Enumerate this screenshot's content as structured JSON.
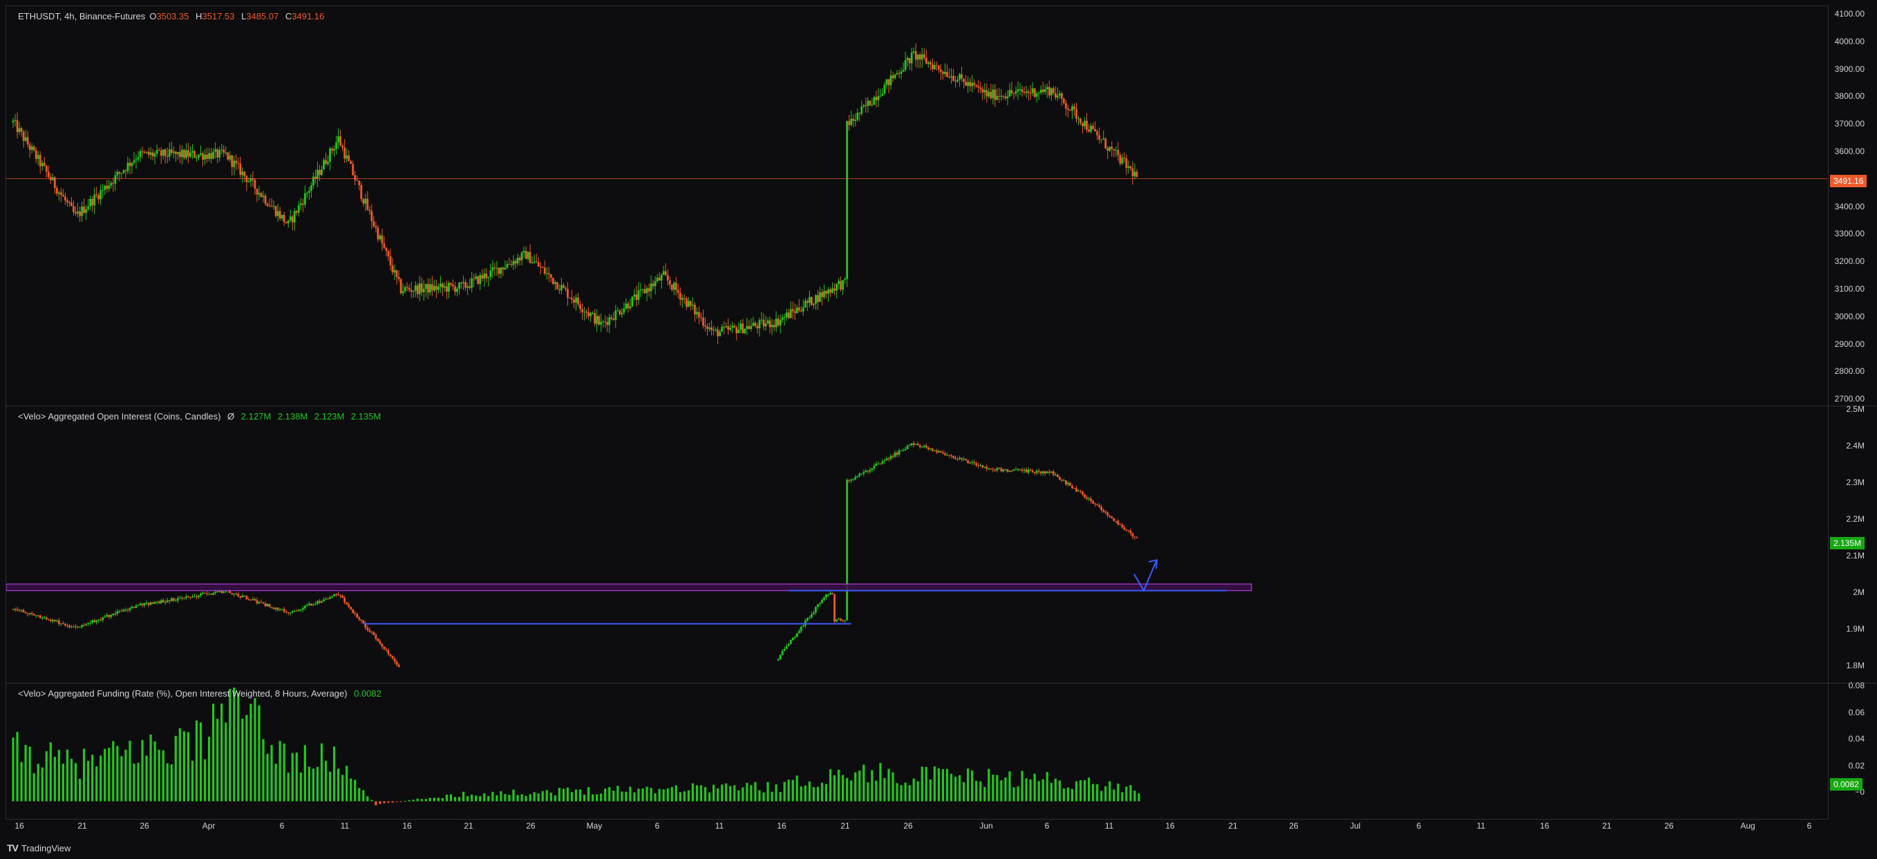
{
  "app": {
    "brand": "TradingView",
    "brand_icon": "tradingview-logo-icon"
  },
  "price_pane": {
    "symbol": "ETHUSDT, 4h, Binance-Futures",
    "o_label": "O",
    "o": "3503.35",
    "h_label": "H",
    "h": "3517.53",
    "l_label": "L",
    "l": "3485.07",
    "c_label": "C",
    "c": "3491.16",
    "last_price": "3491.16",
    "ticks": [
      "4100.00",
      "4000.00",
      "3900.00",
      "3800.00",
      "3700.00",
      "3600.00",
      "3500.00",
      "3400.00",
      "3300.00",
      "3200.00",
      "3100.00",
      "3000.00",
      "2900.00",
      "2800.00",
      "2700.00"
    ]
  },
  "oi_pane": {
    "title": "<Velo> Aggregated Open Interest (Coins, Candles)",
    "ohlc_icon": "Ø",
    "o": "2.127M",
    "h": "2.138M",
    "l": "2.123M",
    "c": "2.135M",
    "last_value": "2.135M",
    "ticks": [
      "2.5M",
      "2.4M",
      "2.3M",
      "2.2M",
      "2.1M",
      "2M",
      "1.9M",
      "1.8M"
    ]
  },
  "funding_pane": {
    "title": "<Velo> Aggregated Funding (Rate (%), Open Interest Weighted, 8 Hours, Average)",
    "value": "0.0082",
    "last_value": "0.0082",
    "ticks": [
      "0.08",
      "0.06",
      "0.04",
      "0.02",
      "−0"
    ]
  },
  "time_axis": [
    "16",
    "21",
    "26",
    "Apr",
    "6",
    "11",
    "16",
    "21",
    "26",
    "May",
    "6",
    "11",
    "16",
    "21",
    "26",
    "Jun",
    "6",
    "11",
    "16",
    "21",
    "26",
    "Jul",
    "6",
    "11",
    "16",
    "21",
    "26",
    "Aug",
    "6"
  ],
  "colors": {
    "up": "#22c81e",
    "down": "#ef5a2b",
    "hline": "#3b5bff",
    "zone_border": "#b03cd8",
    "zone_fill": "#3a1048",
    "last_price_bg": "#ef5a2b",
    "last_value_bg": "#16a811"
  },
  "chart_data": [
    {
      "type": "candlestick",
      "title": "ETHUSDT, 4h, Binance-Futures",
      "x": [
        "2024-03-15",
        "2024-03-20",
        "2024-03-25",
        "2024-04-01",
        "2024-04-06",
        "2024-04-10",
        "2024-04-15",
        "2024-04-20",
        "2024-04-25",
        "2024-05-01",
        "2024-05-06",
        "2024-05-10",
        "2024-05-15",
        "2024-05-20",
        "2024-05-21",
        "2024-05-26",
        "2024-06-01",
        "2024-06-06",
        "2024-06-09",
        "2024-06-13"
      ],
      "close": [
        3700,
        3350,
        3580,
        3580,
        3320,
        3640,
        3080,
        3090,
        3210,
        2950,
        3130,
        2920,
        2960,
        3100,
        3700,
        3950,
        3800,
        3820,
        3680,
        3491.16
      ],
      "ylim": [
        2650,
        4130
      ],
      "annotations": [
        {
          "type": "hline",
          "y": 3491.16,
          "label": "3491.16"
        }
      ]
    },
    {
      "type": "candlestick",
      "title": "<Velo> Aggregated Open Interest (Coins, Candles)",
      "x": [
        "2024-03-15",
        "2024-03-20",
        "2024-03-25",
        "2024-04-01",
        "2024-04-06",
        "2024-04-10",
        "2024-04-15",
        "2024-05-15",
        "2024-05-19",
        "2024-05-20",
        "2024-05-21",
        "2024-05-26",
        "2024-06-01",
        "2024-06-06",
        "2024-06-09",
        "2024-06-13"
      ],
      "close": [
        1950000.0,
        1900000.0,
        1960000.0,
        2000000.0,
        1940000.0,
        1990000.0,
        1790000.0,
        1810000.0,
        1990000.0,
        1920000.0,
        2300000.0,
        2400000.0,
        2330000.0,
        2320000.0,
        2250000.0,
        2135000.0
      ],
      "ylim": [
        1750000.0,
        2500000.0
      ],
      "annotations": [
        {
          "type": "zone",
          "ylim": [
            2000000.0,
            2018000.0
          ],
          "x": [
            "2024-03-15",
            "2024-06-22"
          ]
        },
        {
          "type": "hline",
          "y": 1910000.0,
          "x": [
            "2024-04-12",
            "2024-05-21"
          ]
        },
        {
          "type": "hline",
          "y": 2000000.0,
          "x": [
            "2024-05-16",
            "2024-06-20"
          ]
        },
        {
          "type": "arrow",
          "from": [
            1,
            2000000.0
          ],
          "to": [
            2,
            2080000.0
          ]
        }
      ]
    },
    {
      "type": "bar",
      "title": "<Velo> Aggregated Funding (Rate (%), Open Interest Weighted, 8 Hours, Average)",
      "x": [
        "2024-03-15",
        "2024-03-20",
        "2024-03-25",
        "2024-03-31",
        "2024-04-01",
        "2024-04-06",
        "2024-04-10",
        "2024-04-13",
        "2024-04-20",
        "2024-04-25",
        "2024-05-01",
        "2024-05-10",
        "2024-05-15",
        "2024-05-21",
        "2024-05-26",
        "2024-06-01",
        "2024-06-06",
        "2024-06-13"
      ],
      "values": [
        0.035,
        0.025,
        0.035,
        0.045,
        0.07,
        0.03,
        0.028,
        -0.002,
        0.005,
        0.006,
        0.008,
        0.01,
        0.01,
        0.02,
        0.018,
        0.016,
        0.015,
        0.0082
      ],
      "ylim": [
        -0.005,
        0.08
      ]
    }
  ]
}
